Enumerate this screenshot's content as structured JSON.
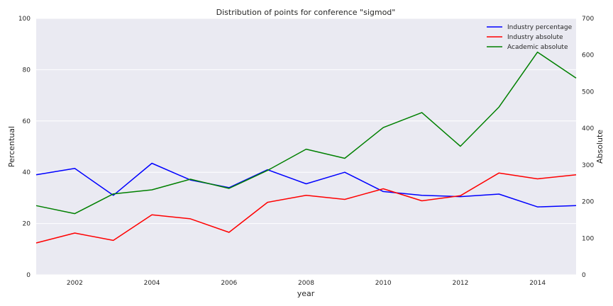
{
  "chart_data": {
    "type": "line",
    "title": "Distribution of points for conference \"sigmod\"",
    "xlabel": "year",
    "ylabel_left": "Percentual",
    "ylabel_right": "Absolute",
    "xlim": [
      2001,
      2015
    ],
    "ylim_left": [
      0,
      100
    ],
    "ylim_right": [
      0,
      700
    ],
    "x_ticks": [
      2002,
      2004,
      2006,
      2008,
      2010,
      2012,
      2014
    ],
    "y_ticks_left": [
      0,
      20,
      40,
      60,
      80,
      100
    ],
    "y_ticks_right": [
      0,
      100,
      200,
      300,
      400,
      500,
      600,
      700
    ],
    "grid": true,
    "legend_position": "top-right",
    "x": [
      2001,
      2002,
      2003,
      2004,
      2005,
      2006,
      2007,
      2008,
      2009,
      2010,
      2011,
      2012,
      2013,
      2014,
      2015
    ],
    "series": [
      {
        "name": "Industry percentage",
        "axis": "left",
        "color": "#0000ff",
        "values": [
          39,
          41.5,
          31,
          43.5,
          37,
          34,
          41,
          35.5,
          40,
          32.5,
          31,
          30.5,
          31.5,
          26.5,
          27
        ]
      },
      {
        "name": "Industry absolute",
        "axis": "right",
        "color": "#ff0000",
        "values": [
          87,
          114,
          94,
          164,
          153,
          116,
          198,
          217,
          206,
          235,
          202,
          216,
          278,
          262,
          273
        ]
      },
      {
        "name": "Academic absolute",
        "axis": "right",
        "color": "#008000",
        "values": [
          189,
          167,
          221,
          232,
          261,
          236,
          285,
          343,
          318,
          402,
          443,
          351,
          458,
          608,
          537
        ]
      }
    ]
  }
}
